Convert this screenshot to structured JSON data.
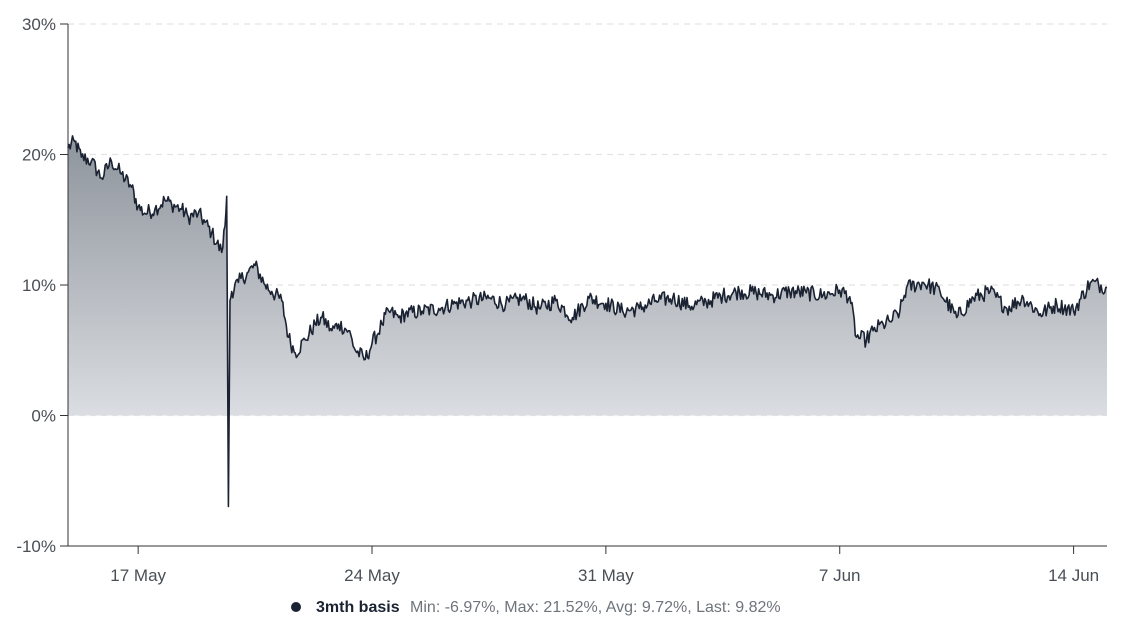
{
  "chart_data": {
    "type": "area",
    "y_ticks": [
      "30%",
      "20%",
      "10%",
      "0%",
      "-10%"
    ],
    "y_tick_values": [
      30,
      20,
      10,
      0,
      -10
    ],
    "ylim": [
      -10,
      30
    ],
    "x_ticks": [
      "17 May",
      "24 May",
      "31 May",
      "7 Jun",
      "14 Jun"
    ],
    "x_tick_values": [
      17,
      24,
      31,
      38,
      45
    ],
    "xlim": [
      14.9,
      46.0
    ],
    "x_units": "days of May (Jun 7 = 38, Jun 14 = 45)",
    "grid": true,
    "legend_position": "bottom-center",
    "colors": {
      "line": "#1b2333",
      "area_top": "#8e949c",
      "area_bottom": "#dadde1",
      "grid": "#e3e3e3",
      "axis": "#333333"
    },
    "series": [
      {
        "name": "3mth basis",
        "x": [
          14.9,
          15.1,
          15.3,
          15.6,
          15.9,
          16.2,
          16.5,
          16.8,
          17.0,
          17.2,
          17.5,
          17.8,
          18.0,
          18.3,
          18.5,
          18.8,
          19.0,
          19.2,
          19.5,
          19.6,
          19.65,
          19.7,
          19.75,
          19.8,
          20.0,
          20.3,
          20.5,
          20.8,
          21.0,
          21.3,
          21.5,
          21.7,
          22.0,
          22.3,
          22.5,
          22.8,
          23.0,
          23.3,
          23.5,
          23.8,
          24.0,
          24.3,
          24.5,
          24.8,
          25.0,
          25.5,
          26.0,
          26.5,
          27.0,
          27.5,
          28.0,
          28.5,
          29.0,
          29.5,
          30.0,
          30.5,
          31.0,
          31.5,
          32.0,
          32.5,
          33.0,
          33.5,
          34.0,
          34.5,
          35.0,
          35.5,
          36.0,
          36.5,
          37.0,
          37.5,
          38.0,
          38.3,
          38.5,
          38.8,
          39.0,
          39.3,
          39.5,
          39.8,
          40.0,
          40.5,
          41.0,
          41.5,
          42.0,
          42.5,
          43.0,
          43.5,
          44.0,
          44.5,
          45.0,
          45.5,
          46.0
        ],
        "values": [
          20.5,
          21.0,
          19.8,
          19.5,
          18.2,
          19.5,
          18.5,
          17.5,
          16.0,
          15.5,
          15.8,
          16.5,
          16.2,
          15.8,
          15.2,
          15.5,
          14.8,
          14.0,
          12.5,
          14.5,
          16.8,
          -6.97,
          8.8,
          9.5,
          10.2,
          11.0,
          11.5,
          10.0,
          9.5,
          8.8,
          6.0,
          4.8,
          5.8,
          7.0,
          7.5,
          6.5,
          7.0,
          6.5,
          5.0,
          4.3,
          5.5,
          7.0,
          8.0,
          7.5,
          7.8,
          8.0,
          8.2,
          8.6,
          8.8,
          9.0,
          8.5,
          9.0,
          8.2,
          8.8,
          7.5,
          9.0,
          8.6,
          8.0,
          8.2,
          8.8,
          9.0,
          8.4,
          8.7,
          9.2,
          9.5,
          9.4,
          9.2,
          9.5,
          9.4,
          9.2,
          9.6,
          9.1,
          6.0,
          5.8,
          6.5,
          7.0,
          7.2,
          8.0,
          9.8,
          10.2,
          9.5,
          7.5,
          9.0,
          9.5,
          8.2,
          9.0,
          7.8,
          8.5,
          8.0,
          10.2,
          9.82
        ]
      }
    ],
    "legend": {
      "name": "3mth basis",
      "stats": "Min: -6.97%, Max: 21.52%, Avg: 9.72%, Last: 9.82%"
    }
  }
}
